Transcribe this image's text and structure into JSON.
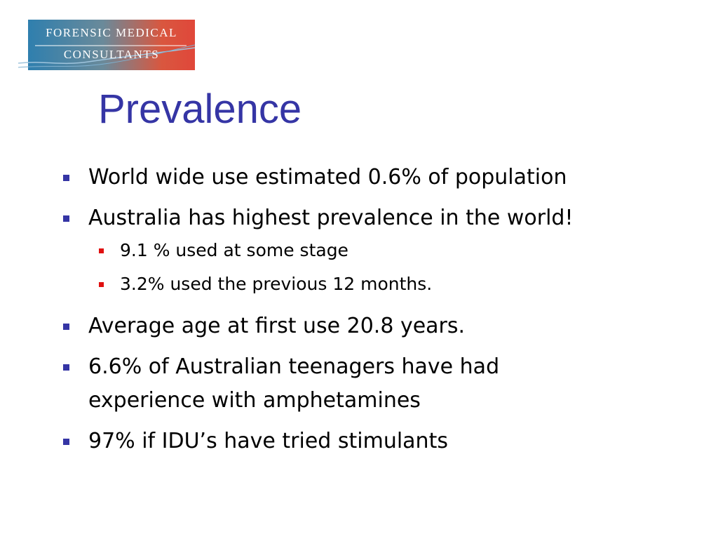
{
  "logo": {
    "lines": [
      "FORENSIC MEDICAL",
      "CONSULTANTS"
    ]
  },
  "title": "Prevalence",
  "bullets": [
    {
      "lines": [
        "World wide use estimated 0.6% of population"
      ]
    },
    {
      "lines": [
        "Australia has highest prevalence in the world!"
      ],
      "sub": [
        "9.1 % used at some stage",
        "3.2% used the previous 12 months."
      ]
    },
    {
      "lines": [
        "Average age at first use 20.8 years."
      ]
    },
    {
      "lines": [
        "6.6% of Australian teenagers have had",
        "experience with amphetamines"
      ]
    },
    {
      "lines": [
        "97% if IDU’s have tried stimulants"
      ]
    }
  ]
}
